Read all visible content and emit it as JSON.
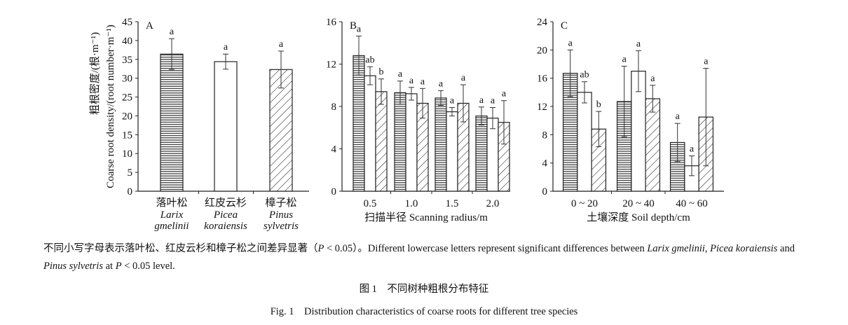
{
  "chart_data": [
    {
      "type": "bar",
      "panel": "A",
      "categories": [
        {
          "zh": "落叶松",
          "latin": [
            "Larix",
            "gmelinii"
          ]
        },
        {
          "zh": "红皮云杉",
          "latin": [
            "Picea",
            "koraiensis"
          ]
        },
        {
          "zh": "樟子松",
          "latin": [
            "Pinus",
            "sylvetris"
          ]
        }
      ],
      "series": [
        {
          "values": [
            36.4,
            34.4,
            32.3
          ],
          "errors": [
            4.1,
            2.0,
            4.9
          ],
          "letters": [
            "a",
            "a",
            "a"
          ],
          "patterns": [
            "horizontal-lines",
            "blank",
            "diagonal-lines"
          ]
        }
      ],
      "ylabel_zh": "粗根密度/(根·m⁻¹)",
      "ylabel": "Coarse root density/(root number·m⁻¹)",
      "xlabel": "",
      "ylim": [
        0,
        45
      ],
      "yticks": [
        0,
        5,
        10,
        15,
        20,
        25,
        30,
        35,
        40,
        45
      ],
      "grid": false
    },
    {
      "type": "bar",
      "panel": "B",
      "categories": [
        "0.5",
        "1.0",
        "1.5",
        "2.0"
      ],
      "series": [
        {
          "pattern": "horizontal-lines",
          "values": [
            12.8,
            9.3,
            8.8,
            7.1
          ],
          "errors": [
            1.85,
            1.1,
            0.7,
            0.85
          ],
          "letters": [
            "a",
            "a",
            "a",
            "a"
          ]
        },
        {
          "pattern": "blank",
          "values": [
            10.9,
            9.2,
            7.5,
            6.9
          ],
          "errors": [
            0.85,
            0.6,
            0.4,
            1.0
          ],
          "letters": [
            "ab",
            "a",
            "a",
            "a"
          ]
        },
        {
          "pattern": "diagonal-lines",
          "values": [
            9.4,
            8.3,
            8.3,
            6.5
          ],
          "errors": [
            1.2,
            1.4,
            1.75,
            2.05
          ],
          "letters": [
            "b",
            "a",
            "a",
            "a"
          ]
        }
      ],
      "xlabel": "扫描半径 Scanning radius/m",
      "ylim": [
        0,
        16
      ],
      "yticks": [
        0,
        4,
        8,
        12,
        16
      ],
      "grid": false
    },
    {
      "type": "bar",
      "panel": "C",
      "categories": [
        "0 ~ 20",
        "20 ~ 40",
        "40 ~ 60"
      ],
      "series": [
        {
          "pattern": "horizontal-lines",
          "values": [
            16.7,
            12.7,
            6.9
          ],
          "errors": [
            3.3,
            5.0,
            2.7
          ],
          "letters": [
            "a",
            "a",
            "a"
          ]
        },
        {
          "pattern": "blank",
          "values": [
            14.0,
            17.0,
            3.6
          ],
          "errors": [
            1.5,
            2.9,
            1.4
          ],
          "letters": [
            "ab",
            "a",
            "a"
          ]
        },
        {
          "pattern": "diagonal-lines",
          "values": [
            8.8,
            13.1,
            10.5
          ],
          "errors": [
            2.5,
            1.9,
            6.9
          ],
          "letters": [
            "b",
            "a",
            "a"
          ]
        }
      ],
      "xlabel": "土壤深度 Soil depth/cm",
      "ylim": [
        0,
        24
      ],
      "yticks": [
        0,
        4,
        8,
        12,
        16,
        20,
        24
      ],
      "grid": false
    }
  ],
  "caption": {
    "segments": [
      {
        "text": "不同小写字母表示落叶松、红皮云杉和樟子松之间差异显著（",
        "italic": false
      },
      {
        "text": "P",
        "italic": true
      },
      {
        "text": " < 0.05）。Different lowercase letters represent significant differences between ",
        "italic": false
      },
      {
        "text": "Larix gmelinii",
        "italic": true
      },
      {
        "text": ", ",
        "italic": false
      },
      {
        "text": "Picea koraiensis",
        "italic": true
      },
      {
        "text": " and ",
        "italic": false
      },
      {
        "text": "Pinus sylvetris",
        "italic": true
      },
      {
        "text": " at ",
        "italic": false
      },
      {
        "text": "P",
        "italic": true
      },
      {
        "text": " < 0.05 level.",
        "italic": false
      }
    ]
  },
  "figure_title_zh": "图 1　不同树种粗根分布特征",
  "figure_title_en": "Fig. 1　Distribution characteristics of coarse roots for different tree species"
}
